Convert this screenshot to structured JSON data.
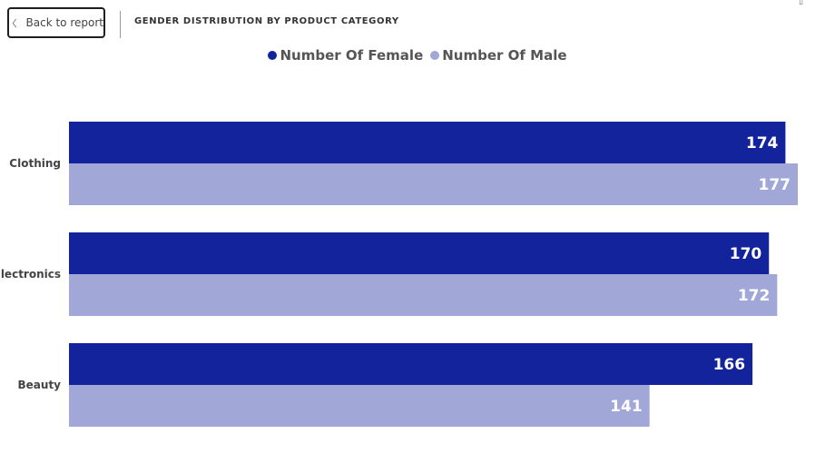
{
  "header": {
    "back_label": "Back to report",
    "title": "GENDER DISTRIBUTION BY PRODUCT CATEGORY"
  },
  "colors": {
    "female": "#13239c",
    "male": "#a1a8d8"
  },
  "chart_data": {
    "type": "bar",
    "orientation": "horizontal",
    "categories": [
      "Clothing",
      "Electronics",
      "Beauty"
    ],
    "series": [
      {
        "name": "Number Of Female",
        "values": [
          174,
          170,
          166
        ]
      },
      {
        "name": "Number Of Male",
        "values": [
          177,
          172,
          141
        ]
      }
    ],
    "legend": "top-center",
    "xlim": [
      0,
      177
    ],
    "grid": false,
    "title": "",
    "xlabel": "",
    "ylabel": ""
  }
}
